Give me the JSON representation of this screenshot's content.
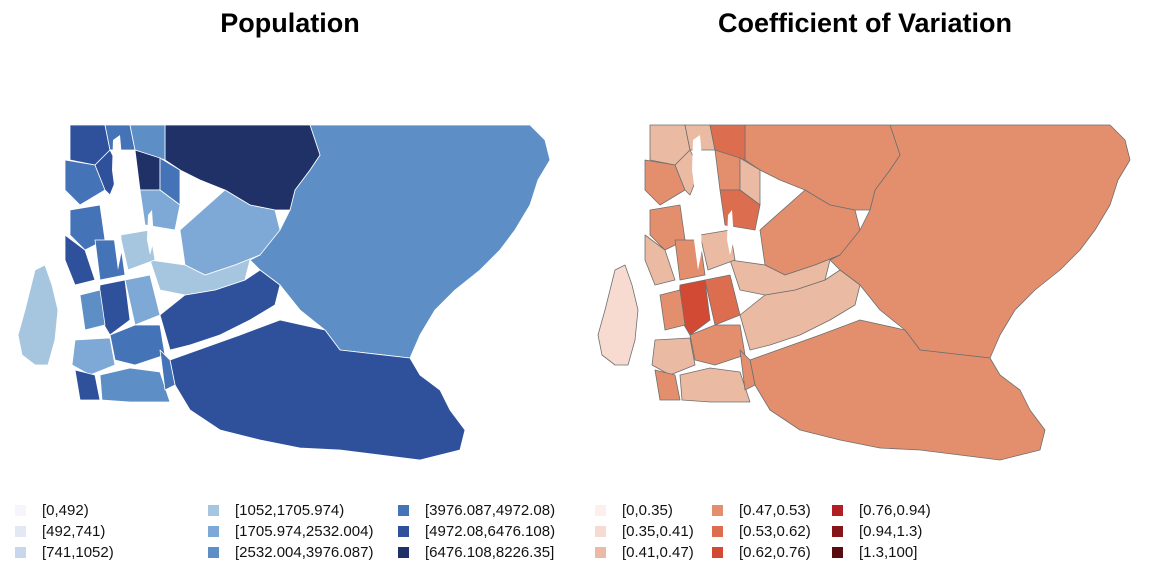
{
  "left_panel": {
    "title": "Population",
    "legend": [
      {
        "label": "[0,492)",
        "color": "#f7f4fb"
      },
      {
        "label": "[492,741)",
        "color": "#e2e9f5"
      },
      {
        "label": "[741,1052)",
        "color": "#c7d8ec"
      },
      {
        "label": "[1052,1705.974)",
        "color": "#a6c6e0"
      },
      {
        "label": "[1705.974,2532.004)",
        "color": "#7ea9d6"
      },
      {
        "label": "[2532.004,3976.087)",
        "color": "#5d8fc6"
      },
      {
        "label": "[3976.087,4972.08)",
        "color": "#4573b7"
      },
      {
        "label": "[4972.08,6476.108)",
        "color": "#2f509b"
      },
      {
        "label": "[6476.108,8226.35]",
        "color": "#1f3166"
      }
    ]
  },
  "right_panel": {
    "title": "Coefficient of Variation",
    "legend": [
      {
        "label": "[0,0.35)",
        "color": "#fdf0ec"
      },
      {
        "label": "[0.35,0.41)",
        "color": "#f7dbd1"
      },
      {
        "label": "[0.41,0.47)",
        "color": "#ebbaa2"
      },
      {
        "label": "[0.47,0.53)",
        "color": "#e38f6e"
      },
      {
        "label": "[0.53,0.62)",
        "color": "#dd6d4f"
      },
      {
        "label": "[0.62,0.76)",
        "color": "#d24a33"
      },
      {
        "label": "[0.76,0.94)",
        "color": "#b11f24"
      },
      {
        "label": "[0.94,1.3)",
        "color": "#861519"
      },
      {
        "label": "[1.3,100]",
        "color": "#5a0b10"
      }
    ]
  }
}
